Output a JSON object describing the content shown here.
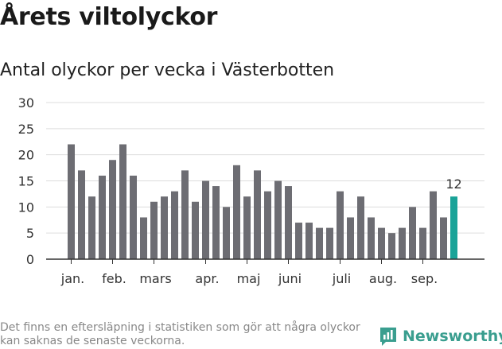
{
  "header": {
    "title": "Årets viltolyckor",
    "subtitle": "Antal olyckor per vecka i Västerbotten"
  },
  "footer": {
    "note": "Det finns en eftersläpning i statistiken som gör att några olyckor kan saknas de senaste veckorna.",
    "brand": "Newsworthy"
  },
  "colors": {
    "bar": "#6d6d73",
    "highlight": "#1aa398",
    "grid": "#dddddd",
    "axis": "#333333",
    "brand": "#3a9e8f"
  },
  "chart_data": {
    "type": "bar",
    "title": "Antal olyckor per vecka i Västerbotten",
    "xlabel": "",
    "ylabel": "",
    "ylim": [
      0,
      30
    ],
    "yticks": [
      "0",
      "5",
      "10",
      "15",
      "20",
      "25",
      "30"
    ],
    "week_range": [
      1,
      39
    ],
    "values": [
      22,
      17,
      12,
      16,
      19,
      22,
      16,
      8,
      11,
      12,
      13,
      17,
      11,
      15,
      14,
      10,
      18,
      12,
      17,
      13,
      15,
      14,
      7,
      7,
      6,
      6,
      13,
      8,
      12,
      8,
      6,
      5,
      6,
      10,
      6,
      13,
      8,
      12
    ],
    "highlight_index": 37,
    "highlight_label": "12",
    "month_ticks": [
      {
        "label": "jan.",
        "bar": 0
      },
      {
        "label": "feb.",
        "bar": 4
      },
      {
        "label": "mars",
        "bar": 8
      },
      {
        "label": "apr.",
        "bar": 13
      },
      {
        "label": "maj",
        "bar": 17
      },
      {
        "label": "juni",
        "bar": 21
      },
      {
        "label": "juli",
        "bar": 26
      },
      {
        "label": "aug.",
        "bar": 30
      },
      {
        "label": "sep.",
        "bar": 34
      }
    ],
    "grid": true,
    "legend": "none"
  }
}
